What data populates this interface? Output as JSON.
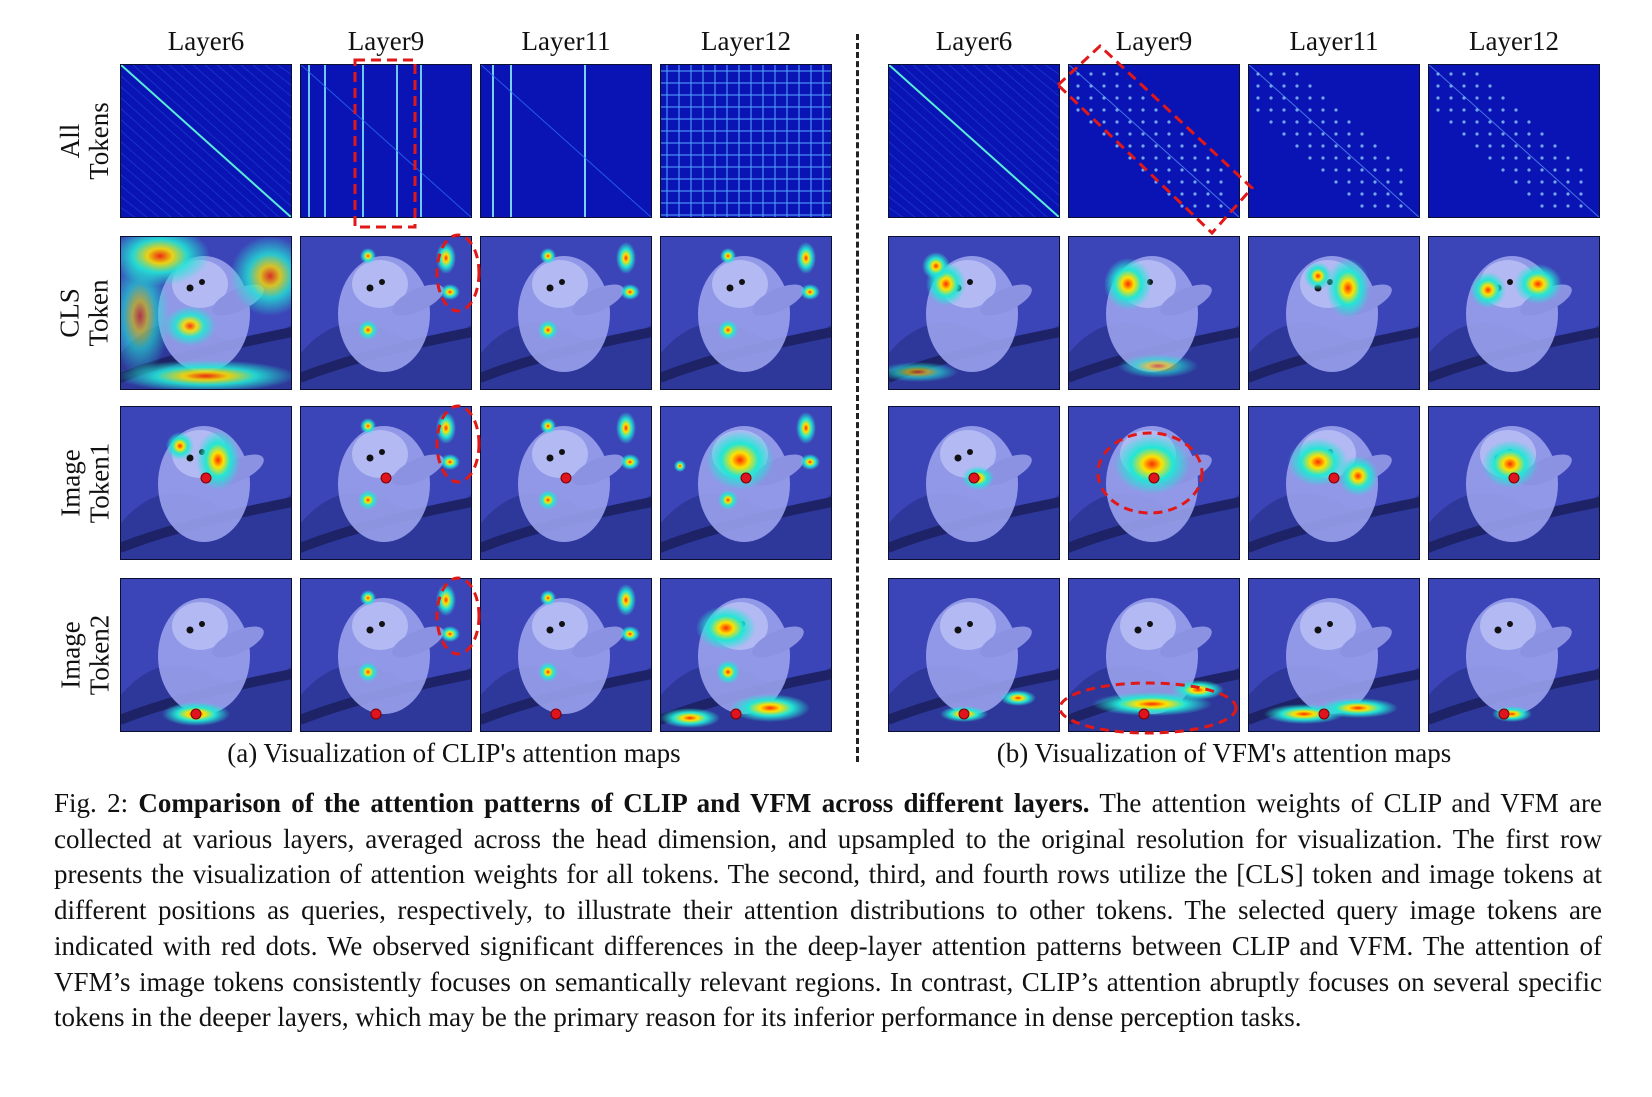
{
  "panel_a": {
    "layers": [
      "Layer6",
      "Layer9",
      "Layer11",
      "Layer12"
    ],
    "subcaption": "(a) Visualization of CLIP's attention maps"
  },
  "panel_b": {
    "layers": [
      "Layer6",
      "Layer9",
      "Layer11",
      "Layer12"
    ],
    "subcaption": "(b) Visualization of VFM's attention maps"
  },
  "rows": [
    {
      "line1": "All",
      "line2": "Tokens"
    },
    {
      "line1": "CLS",
      "line2": "Token"
    },
    {
      "line1": "Image",
      "line2": "Token1"
    },
    {
      "line1": "Image",
      "line2": "Token2"
    }
  ],
  "caption": {
    "prefix": "Fig. 2: ",
    "bold": "Comparison of the attention patterns of CLIP and VFM across different layers.",
    "body": " The attention weights of CLIP and VFM are collected at various layers, averaged across the head dimension, and upsampled to the original resolution for visualization. The first row presents the visualization of attention weights for all tokens. The second, third, and fourth rows utilize the [CLS] token and image tokens at different positions as queries, respectively, to illustrate their attention distributions to other tokens. The selected query image tokens are indicated with red dots. We observed significant differences in the deep-layer attention patterns between CLIP and VFM. The attention of VFM’s image tokens consistently focuses on semantically relevant regions. In contrast, CLIP’s attention abruptly focuses on several specific tokens in the deeper layers, which may be the primary reason for its inferior performance in dense perception tasks."
  },
  "colors": {
    "annotation": "#e01818",
    "query_dot": "#e0141e",
    "attention_bg": "#0a14b4"
  }
}
